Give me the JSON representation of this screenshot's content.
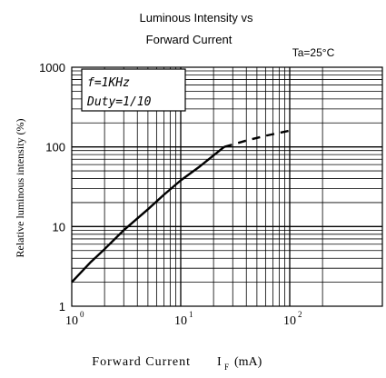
{
  "chart_data": {
    "type": "line",
    "title": [
      "Luminous Intensity vs",
      "Forward Current"
    ],
    "condition": "Ta=25°C",
    "xlabel": "Forward Current",
    "xlabel_symbol": "I",
    "xlabel_subscript": "F",
    "xlabel_unit": "(mA)",
    "ylabel": "Relative luminous intensity (%)",
    "x_scale": "log",
    "y_scale": "log",
    "xlim": [
      1,
      250
    ],
    "ylim": [
      1,
      1000
    ],
    "x_ticks": [
      {
        "value": 1,
        "base": "10",
        "exp": "0"
      },
      {
        "value": 10,
        "base": "10",
        "exp": "1"
      },
      {
        "value": 100,
        "base": "10",
        "exp": "2"
      }
    ],
    "y_ticks": [
      {
        "value": 1,
        "label": "1"
      },
      {
        "value": 10,
        "label": "10"
      },
      {
        "value": 100,
        "label": "100"
      },
      {
        "value": 1000,
        "label": "1000"
      }
    ],
    "legend_box": [
      "f=1KHz",
      "Duty=1/10"
    ],
    "grid": true,
    "series": [
      {
        "style": "solid",
        "x": [
          1,
          1.5,
          2,
          3,
          5,
          7,
          10,
          15,
          20,
          25
        ],
        "y": [
          2,
          3.6,
          5.2,
          9,
          16.5,
          25,
          38,
          57,
          78,
          100
        ]
      },
      {
        "style": "dashed",
        "x": [
          25,
          40,
          60,
          80,
          100
        ],
        "y": [
          100,
          120,
          138,
          150,
          160
        ]
      }
    ]
  }
}
